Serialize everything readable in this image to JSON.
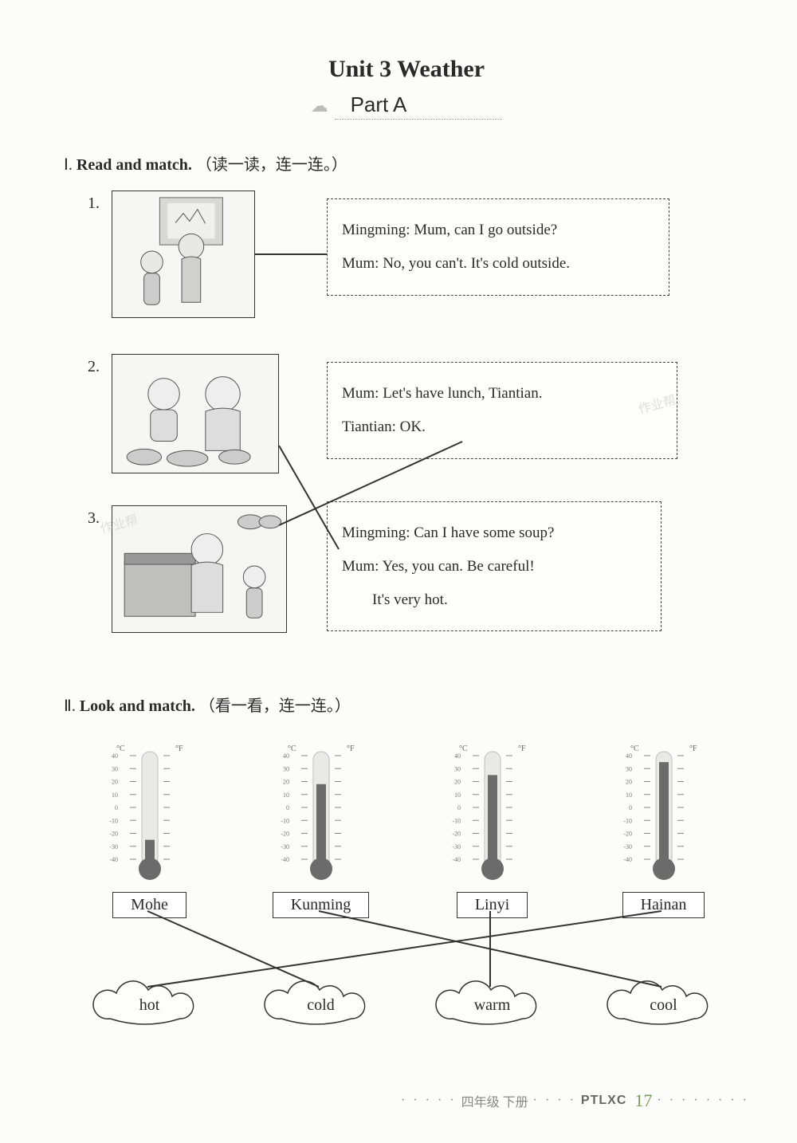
{
  "header": {
    "unit_title": "Unit 3   Weather",
    "part_label": "Part A"
  },
  "section1": {
    "heading_roman": "Ⅰ.",
    "heading_bold": "Read and match.",
    "heading_cn": "（读一读，连一连。）",
    "items": [
      {
        "num": "1.",
        "lines": [
          "Mingming: Mum, can I go outside?",
          "Mum: No, you can't. It's cold outside."
        ]
      },
      {
        "num": "2.",
        "lines": [
          "Mum: Let's have lunch, Tiantian.",
          "Tiantian: OK."
        ]
      },
      {
        "num": "3.",
        "lines": [
          "Mingming: Can I have some soup?",
          "Mum: Yes, you can. Be careful!",
          "        It's very hot."
        ]
      }
    ],
    "match_lines": [
      {
        "from": 1,
        "to": 1
      },
      {
        "from": 2,
        "to": 3
      },
      {
        "from": 3,
        "to": 2
      }
    ],
    "line_color": "#333333"
  },
  "section2": {
    "heading_roman": "Ⅱ.",
    "heading_bold": "Look and match.",
    "heading_cn": "（看一看，连一连。）",
    "thermometers": [
      {
        "city": "Mohe",
        "level": -25,
        "fill_color": "#6b6b6b"
      },
      {
        "city": "Kunming",
        "level": 18,
        "fill_color": "#6b6b6b"
      },
      {
        "city": "Linyi",
        "level": 25,
        "fill_color": "#6b6b6b"
      },
      {
        "city": "Hainan",
        "level": 35,
        "fill_color": "#6b6b6b"
      }
    ],
    "scale": {
      "c_min": -40,
      "c_max": 40,
      "c_step": 10,
      "f_min": -40,
      "f_max": 100,
      "f_step": 20
    },
    "words": [
      "hot",
      "cold",
      "warm",
      "cool"
    ],
    "match_lines": [
      {
        "from_city": 0,
        "to_word": 1
      },
      {
        "from_city": 1,
        "to_word": 3
      },
      {
        "from_city": 2,
        "to_word": 2
      },
      {
        "from_city": 3,
        "to_word": 0
      }
    ],
    "tube_color": "#bdbdbd",
    "tick_color": "#888888",
    "line_color": "#333333",
    "cloud_stroke": "#333333"
  },
  "footer": {
    "grade": "四年级 下册",
    "code": "PTLXC",
    "page": "17"
  },
  "watermark": "作业帮"
}
